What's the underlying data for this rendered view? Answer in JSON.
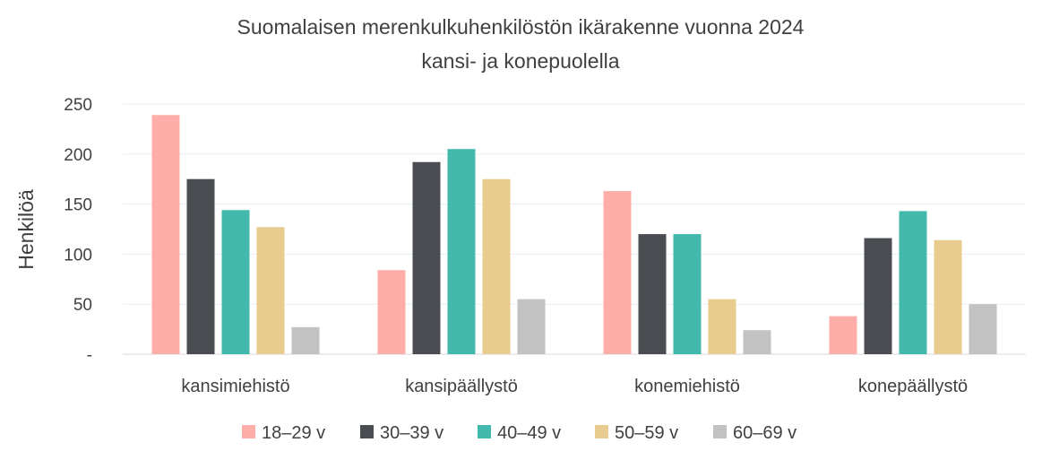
{
  "chart_data": {
    "type": "bar",
    "title": "Suomalaisen merenkulkuhenkilöstön ikärakenne vuonna 2024",
    "subtitle": "kansi- ja konepuolella",
    "xlabel": "",
    "ylabel": "Henkilöä",
    "ylim": [
      0,
      250
    ],
    "yticks": [
      250,
      200,
      150,
      100,
      50,
      0
    ],
    "ytick_labels": [
      "250",
      "200",
      "150",
      "100",
      "50",
      "-"
    ],
    "grid": true,
    "legend_position": "bottom",
    "categories": [
      "kansimiehistö",
      "kansipäällystö",
      "konemiehistö",
      "konepäällystö"
    ],
    "series": [
      {
        "name": "18–29 v",
        "color": "#FFADA8",
        "values": [
          239,
          84,
          163,
          38
        ]
      },
      {
        "name": "30–39 v",
        "color": "#4A4D51",
        "values": [
          175,
          192,
          120,
          116
        ]
      },
      {
        "name": "40–49 v",
        "color": "#43B8AD",
        "values": [
          144,
          205,
          120,
          143
        ]
      },
      {
        "name": "50–59 v",
        "color": "#E8CB8E",
        "values": [
          127,
          175,
          55,
          114
        ]
      },
      {
        "name": "60–69 v",
        "color": "#C2C2C2",
        "values": [
          27,
          55,
          24,
          50
        ]
      }
    ]
  }
}
